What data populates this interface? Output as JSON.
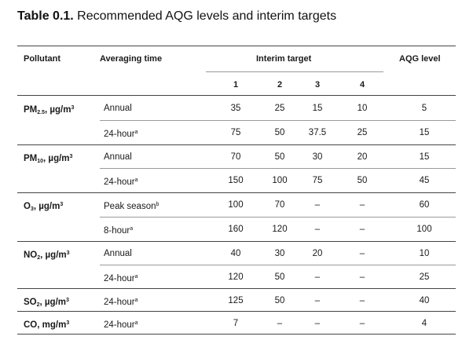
{
  "title": {
    "prefix": "Table 0.1.",
    "text": " Recommended AQG levels and interim targets"
  },
  "headers": {
    "pollutant": "Pollutant",
    "averaging_time": "Averaging time",
    "interim_target": "Interim target",
    "it_cols": [
      "1",
      "2",
      "3",
      "4"
    ],
    "aqg": "AQG level"
  },
  "rows": [
    {
      "pol_base": "PM",
      "pol_sub": "2.5",
      "pol_unit": ", µg/m",
      "pol_sup": "3",
      "at": "Annual",
      "at_sup": "",
      "vals": [
        "35",
        "25",
        "15",
        "10"
      ],
      "aqg": "5"
    },
    {
      "pol_base": "",
      "pol_sub": "",
      "pol_unit": "",
      "pol_sup": "",
      "at": "24-hour",
      "at_sup": "a",
      "vals": [
        "75",
        "50",
        "37.5",
        "25"
      ],
      "aqg": "15"
    },
    {
      "pol_base": "PM",
      "pol_sub": "10",
      "pol_unit": ", µg/m",
      "pol_sup": "3",
      "at": "Annual",
      "at_sup": "",
      "vals": [
        "70",
        "50",
        "30",
        "20"
      ],
      "aqg": "15"
    },
    {
      "pol_base": "",
      "pol_sub": "",
      "pol_unit": "",
      "pol_sup": "",
      "at": "24-hour",
      "at_sup": "a",
      "vals": [
        "150",
        "100",
        "75",
        "50"
      ],
      "aqg": "45"
    },
    {
      "pol_base": "O",
      "pol_sub": "3",
      "pol_unit": ", µg/m",
      "pol_sup": "3",
      "at": "Peak season",
      "at_sup": "b",
      "vals": [
        "100",
        "70",
        "–",
        "–"
      ],
      "aqg": "60"
    },
    {
      "pol_base": "",
      "pol_sub": "",
      "pol_unit": "",
      "pol_sup": "",
      "at": "8-hour",
      "at_sup": "a",
      "vals": [
        "160",
        "120",
        "–",
        "–"
      ],
      "aqg": "100"
    },
    {
      "pol_base": "NO",
      "pol_sub": "2",
      "pol_unit": ", µg/m",
      "pol_sup": "3",
      "at": "Annual",
      "at_sup": "",
      "vals": [
        "40",
        "30",
        "20",
        "–"
      ],
      "aqg": "10"
    },
    {
      "pol_base": "",
      "pol_sub": "",
      "pol_unit": "",
      "pol_sup": "",
      "at": "24-hour",
      "at_sup": "a",
      "vals": [
        "120",
        "50",
        "–",
        "–"
      ],
      "aqg": "25"
    },
    {
      "pol_base": "SO",
      "pol_sub": "2",
      "pol_unit": ", µg/m",
      "pol_sup": "3",
      "at": "24-hour",
      "at_sup": "a",
      "vals": [
        "125",
        "50",
        "–",
        "–"
      ],
      "aqg": "40"
    },
    {
      "pol_base": "CO, mg/m",
      "pol_sub": "",
      "pol_unit": "",
      "pol_sup": "3",
      "at": "24-hour",
      "at_sup": "a",
      "vals": [
        "7",
        "–",
        "–",
        "–"
      ],
      "aqg": "4"
    }
  ]
}
